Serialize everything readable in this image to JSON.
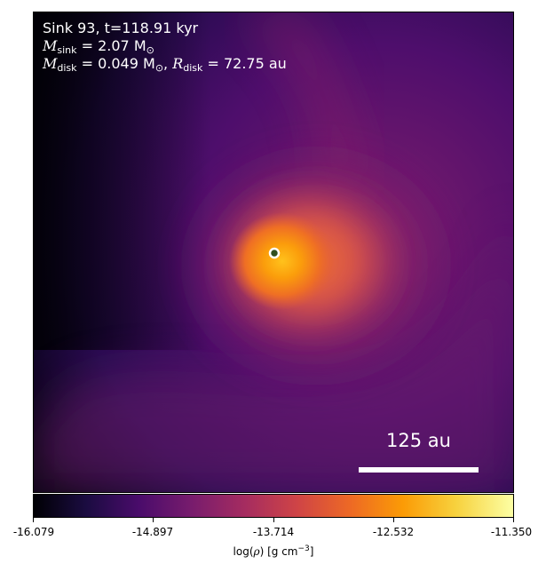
{
  "annotation": {
    "line1": "Sink 93, t=118.91 kyr",
    "line2_sym": "M",
    "line2_sub": "sink",
    "line2_rest": " = 2.07 M",
    "line2_sun": "⊙",
    "line3_sym": "M",
    "line3_sub": "disk",
    "line3_val": " = 0.049 M",
    "line3_sun": "⊙",
    "line3_sep": ", ",
    "line3_rsym": "R",
    "line3_rsub": "disk",
    "line3_rval": " = 72.75 au"
  },
  "scale_bar": {
    "label": "125 au"
  },
  "colorbar": {
    "ticks": [
      "-16.079",
      "-14.897",
      "-13.714",
      "-12.532",
      "-11.350"
    ],
    "label_pre": "log(",
    "label_rho": "ρ",
    "label_post": ") [g cm",
    "label_exp": "−3",
    "label_end": "]",
    "colormap": "inferno"
  },
  "sink_marker": {
    "icon": "sink-circle-icon",
    "fill": "#2f4f1f",
    "edge": "#ffffff"
  }
}
